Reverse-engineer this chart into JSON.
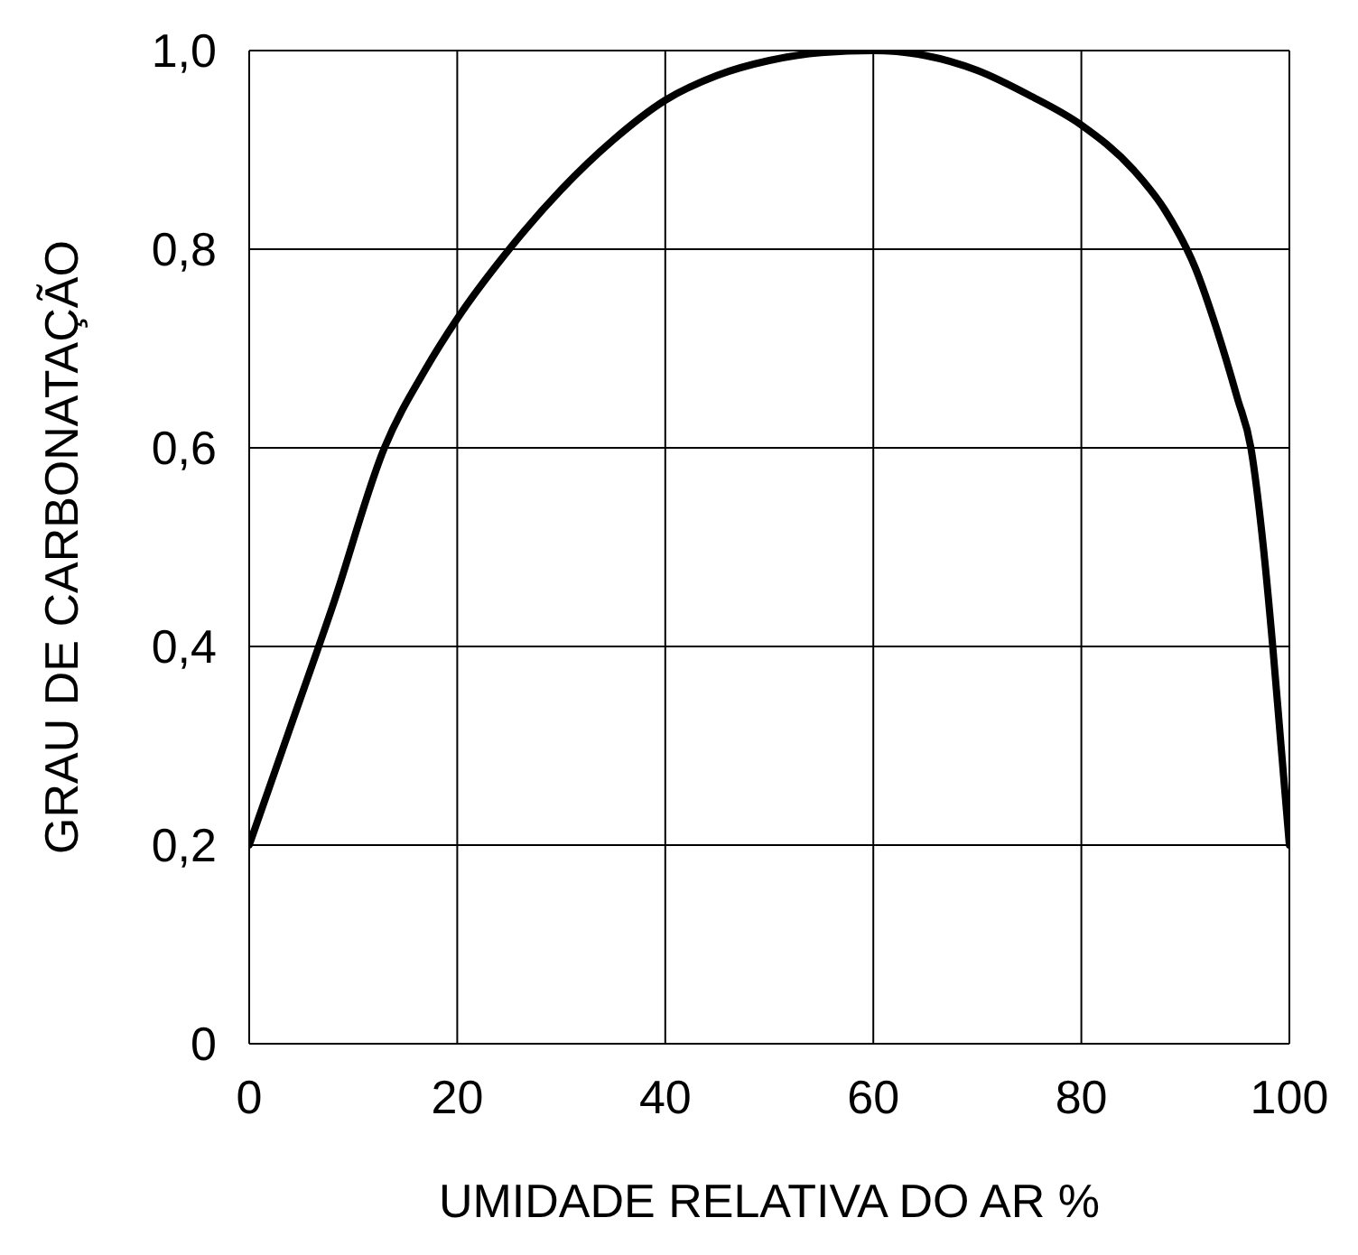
{
  "chart_data": {
    "type": "line",
    "xlabel": "UMIDADE RELATIVA DO AR %",
    "ylabel": "GRAU DE CARBONATAÇÃO",
    "x": [
      0,
      4,
      8,
      13,
      17,
      20,
      25,
      30,
      35,
      40,
      45,
      50,
      55,
      60,
      65,
      70,
      75,
      80,
      85,
      88,
      91,
      93,
      95,
      96.3,
      97.5,
      98.4,
      99.2,
      100
    ],
    "series": [
      {
        "color": "#000000",
        "values": [
          0.2,
          0.32,
          0.44,
          0.6,
          0.68,
          0.73,
          0.8,
          0.86,
          0.91,
          0.95,
          0.975,
          0.99,
          0.998,
          1.0,
          0.995,
          0.98,
          0.955,
          0.925,
          0.88,
          0.84,
          0.78,
          0.72,
          0.65,
          0.6,
          0.5,
          0.4,
          0.3,
          0.2
        ]
      }
    ],
    "xlim": [
      0,
      100
    ],
    "xticks": [
      0,
      20,
      40,
      60,
      80,
      100
    ],
    "ylim": [
      0,
      1
    ],
    "yticks": [
      0,
      {
        "value": 0.2,
        "label": "0,2"
      },
      {
        "value": 0.4,
        "label": "0,4"
      },
      {
        "value": 0.6,
        "label": "0,6"
      },
      {
        "value": 0.8,
        "label": "0,8"
      },
      {
        "value": 1,
        "label": "1,0"
      }
    ],
    "grid": true,
    "marker": "none",
    "line_style": "solid"
  }
}
